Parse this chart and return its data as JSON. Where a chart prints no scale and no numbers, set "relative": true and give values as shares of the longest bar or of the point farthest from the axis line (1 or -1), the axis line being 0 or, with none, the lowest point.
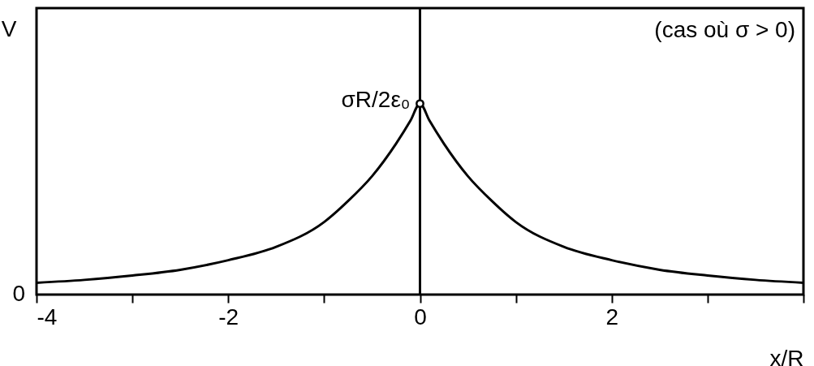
{
  "chart_data": {
    "type": "line",
    "relative": true,
    "ylabel": "V",
    "xlabel": "x/R",
    "xlim": [
      -4,
      4
    ],
    "xticks": [
      -4,
      {
        "value": -3,
        "label": null
      },
      -2,
      {
        "value": -1,
        "label": null
      },
      0,
      {
        "value": 1,
        "label": null
      },
      2,
      {
        "value": 3,
        "label": null
      },
      {
        "value": 4,
        "label": null
      }
    ],
    "series": [
      {
        "color": "#000000",
        "x": [
          -4,
          -3.5,
          -3,
          -2.5,
          -2,
          -1.5,
          -1,
          -0.75,
          -0.5,
          -0.25,
          -0.1,
          0,
          0.1,
          0.25,
          0.5,
          0.75,
          1,
          1.5,
          2,
          2.5,
          3,
          3.5,
          4
        ],
        "values": [
          0.062,
          0.077,
          0.1,
          0.13,
          0.18,
          0.25,
          0.38,
          0.49,
          0.62,
          0.79,
          0.91,
          1,
          0.91,
          0.79,
          0.62,
          0.49,
          0.38,
          0.25,
          0.18,
          0.13,
          0.1,
          0.077,
          0.062
        ]
      },
      {
        "type": "scatter",
        "marker": "circle",
        "color": "#000000",
        "x": [
          0
        ],
        "values": [
          1
        ]
      }
    ],
    "ref_lines": [
      {
        "axis": "x",
        "value": 0,
        "color": "#000000"
      }
    ],
    "annotations": [
      {
        "text": "σR/2ε₀",
        "x": 0,
        "y": 1
      },
      "0",
      "(cas où  σ > 0)"
    ],
    "grid": false
  }
}
